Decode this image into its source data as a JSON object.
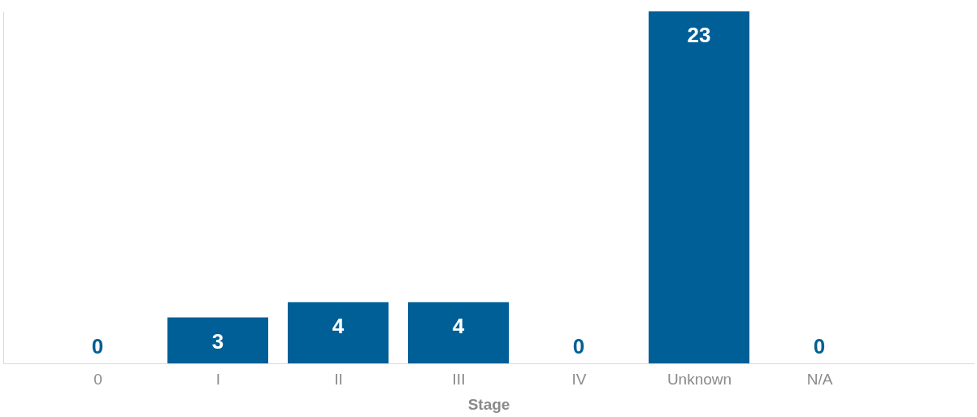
{
  "chart_data": {
    "type": "bar",
    "xlabel": "Stage",
    "categories": [
      "0",
      "I",
      "II",
      "III",
      "IV",
      "Unknown",
      "N/A"
    ],
    "values": [
      0,
      3,
      4,
      4,
      0,
      23,
      0
    ],
    "color": "#005f96",
    "data_labels": true,
    "grid": false
  }
}
